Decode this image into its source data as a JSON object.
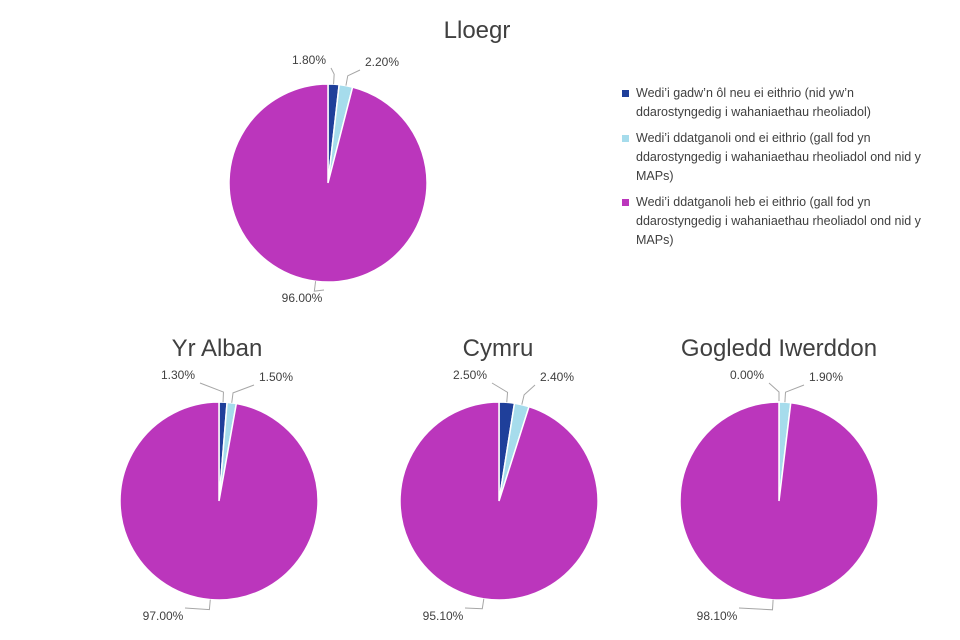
{
  "colors": {
    "left_behind": "#1f3f9a",
    "devolved_exempt": "#a6dcec",
    "devolved_not_exempt": "#bb36bc",
    "leader_line": "#a6a6a6",
    "text": "#404040"
  },
  "legend": [
    {
      "label": "Wedi’i gadw’n ôl neu ei eithrio (nid yw’n ddarostyngedig i wahaniaethau rheoliadol)",
      "color_key": "left_behind"
    },
    {
      "label": "Wedi’i ddatganoli ond ei eithrio (gall fod yn ddarostyngedig i wahaniaethau rheoliadol ond nid y MAPs)",
      "color_key": "devolved_exempt"
    },
    {
      "label": "Wedi’i ddatganoli heb ei eithrio (gall fod yn ddarostyngedig i wahaniaethau rheoliadol ond nid y MAPs)",
      "color_key": "devolved_not_exempt"
    }
  ],
  "chart_data": [
    {
      "type": "pie",
      "title": "Lloegr",
      "legend_position": "right",
      "slices": [
        {
          "value": 1.8,
          "label": "1.80%",
          "color_key": "left_behind"
        },
        {
          "value": 2.2,
          "label": "2.20%",
          "color_key": "devolved_exempt"
        },
        {
          "value": 96.0,
          "label": "96.00%",
          "color_key": "devolved_not_exempt"
        }
      ]
    },
    {
      "type": "pie",
      "title": "Yr Alban",
      "slices": [
        {
          "value": 1.3,
          "label": "1.30%",
          "color_key": "left_behind"
        },
        {
          "value": 1.5,
          "label": "1.50%",
          "color_key": "devolved_exempt"
        },
        {
          "value": 97.0,
          "label": "97.00%",
          "color_key": "devolved_not_exempt"
        }
      ]
    },
    {
      "type": "pie",
      "title": "Cymru",
      "slices": [
        {
          "value": 2.5,
          "label": "2.50%",
          "color_key": "left_behind"
        },
        {
          "value": 2.4,
          "label": "2.40%",
          "color_key": "devolved_exempt"
        },
        {
          "value": 95.1,
          "label": "95.10%",
          "color_key": "devolved_not_exempt"
        }
      ]
    },
    {
      "type": "pie",
      "title": "Gogledd Iwerddon",
      "slices": [
        {
          "value": 0.0,
          "label": "0.00%",
          "color_key": "left_behind"
        },
        {
          "value": 1.9,
          "label": "1.90%",
          "color_key": "devolved_exempt"
        },
        {
          "value": 98.1,
          "label": "98.10%",
          "color_key": "devolved_not_exempt"
        }
      ]
    }
  ]
}
